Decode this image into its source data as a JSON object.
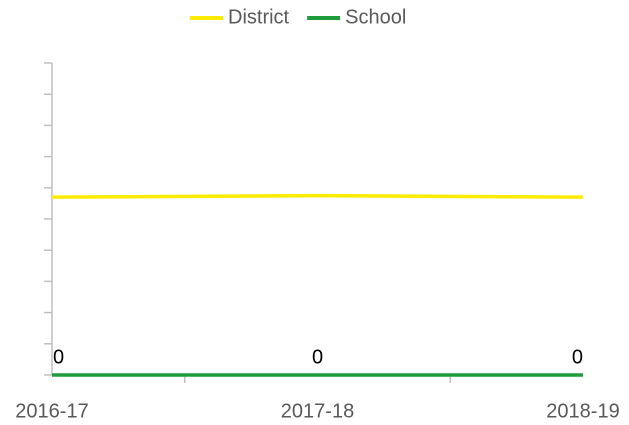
{
  "chart_data": {
    "type": "line",
    "categories": [
      "2016-17",
      "2017-18",
      "2018-19"
    ],
    "series": [
      {
        "name": "District",
        "color": "#ffeb00",
        "values": [
          5.7,
          5.75,
          5.7
        ]
      },
      {
        "name": "School",
        "color": "#1f9d3a",
        "values": [
          0,
          0,
          0
        ]
      }
    ],
    "ylim": [
      0,
      10
    ],
    "yticks": [
      0,
      1,
      2,
      3,
      4,
      5,
      6,
      7,
      8,
      9,
      10
    ],
    "grid": false,
    "legend": "top"
  }
}
